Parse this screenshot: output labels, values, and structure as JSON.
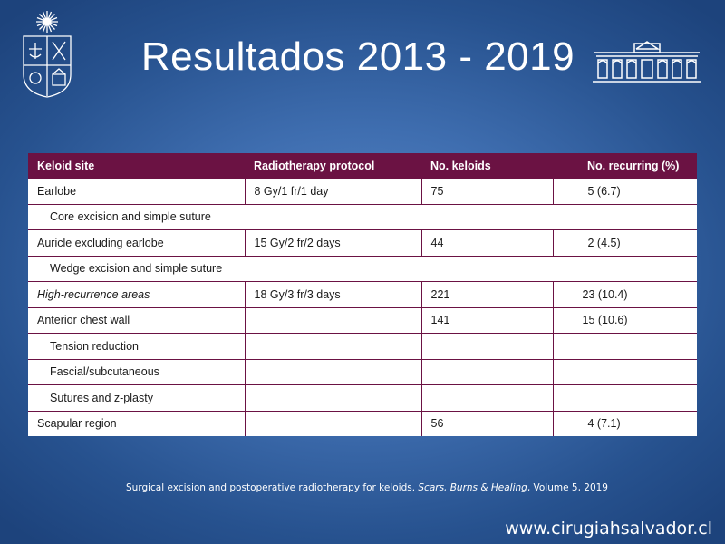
{
  "slide": {
    "title": "Resultados 2013 - 2019"
  },
  "logos": {
    "left": "university-seal-icon",
    "right": "building-facade-icon"
  },
  "table": {
    "headers": [
      "Keloid site",
      "Radiotherapy protocol",
      "No. keloids",
      "No. recurring (%)"
    ],
    "rows": [
      {
        "site": "Earlobe",
        "protocol": "8 Gy/1 fr/1 day",
        "keloids": "75",
        "recurring": "5 (6.7)"
      },
      {
        "site": "Core excision and simple suture",
        "span": true
      },
      {
        "site": "Auricle excluding earlobe",
        "protocol": "15 Gy/2 fr/2 days",
        "keloids": "44",
        "recurring": "2 (4.5)"
      },
      {
        "site": "Wedge excision and simple suture",
        "span": true
      },
      {
        "site": "High-recurrence areas",
        "protocol": "18 Gy/3 fr/3 days",
        "keloids": "221",
        "recurring": "23 (10.4)"
      },
      {
        "site": "Anterior chest wall",
        "protocol": "",
        "keloids": "141",
        "recurring": "15 (10.6)"
      },
      {
        "site": "Tension reduction",
        "protocol": "",
        "keloids": "",
        "recurring": ""
      },
      {
        "site": "Fascial/subcutaneous",
        "protocol": "",
        "keloids": "",
        "recurring": ""
      },
      {
        "site": "Sutures and z-plasty",
        "protocol": "",
        "keloids": "",
        "recurring": ""
      },
      {
        "site": "Scapular region",
        "protocol": "",
        "keloids": "56",
        "recurring": "4 (7.1)"
      }
    ]
  },
  "caption": {
    "text": "Surgical excision and postoperative radiotherapy for keloids.",
    "journal": "Scars, Burns & Healing",
    "volume": ", Volume 5, 2019"
  },
  "footer": {
    "website": "www.cirugiahsalvador.cl"
  }
}
